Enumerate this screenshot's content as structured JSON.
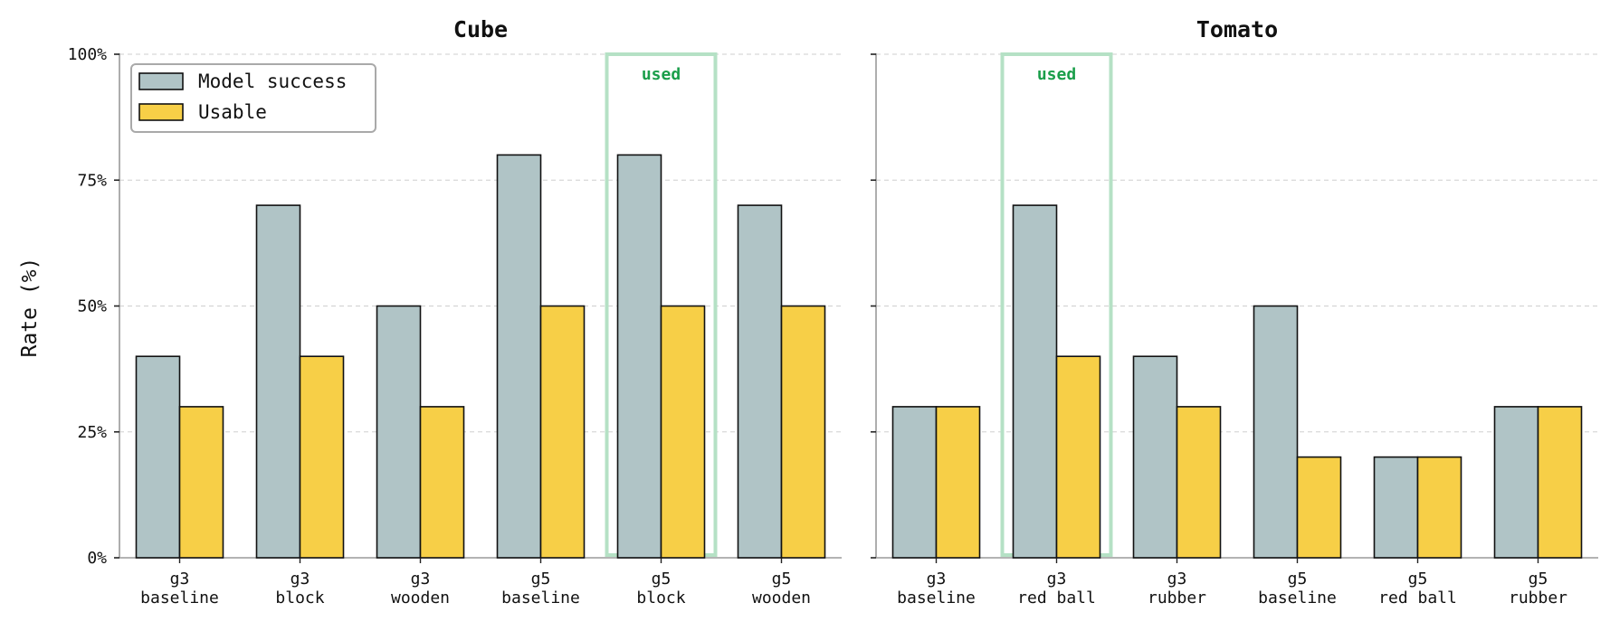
{
  "chart_data": [
    {
      "type": "bar",
      "title": "Cube",
      "ylabel": "Rate (%)",
      "ylim": [
        0,
        100
      ],
      "yticks": [
        "0%",
        "25%",
        "50%",
        "75%",
        "100%"
      ],
      "categories": [
        [
          "g3",
          "baseline"
        ],
        [
          "g3",
          "block"
        ],
        [
          "g3",
          "wooden"
        ],
        [
          "g5",
          "baseline"
        ],
        [
          "g5",
          "block"
        ],
        [
          "g5",
          "wooden"
        ]
      ],
      "series": [
        {
          "name": "Model success",
          "color": "#b0c4c6",
          "values": [
            40,
            70,
            50,
            80,
            80,
            70
          ]
        },
        {
          "name": "Usable",
          "color": "#f7cf47",
          "values": [
            30,
            40,
            30,
            50,
            50,
            50
          ]
        }
      ],
      "highlight": {
        "index": 4,
        "label": "used",
        "color": "#b5e1c5",
        "text_color": "#1a9e4a"
      },
      "legend": "top-left",
      "grid": "y dashed"
    },
    {
      "type": "bar",
      "title": "Tomato",
      "ylim": [
        0,
        100
      ],
      "categories": [
        [
          "g3",
          "baseline"
        ],
        [
          "g3",
          "red ball"
        ],
        [
          "g3",
          "rubber"
        ],
        [
          "g5",
          "baseline"
        ],
        [
          "g5",
          "red ball"
        ],
        [
          "g5",
          "rubber"
        ]
      ],
      "series": [
        {
          "name": "Model success",
          "color": "#b0c4c6",
          "values": [
            30,
            70,
            40,
            50,
            20,
            30
          ]
        },
        {
          "name": "Usable",
          "color": "#f7cf47",
          "values": [
            30,
            40,
            30,
            20,
            20,
            30
          ]
        }
      ],
      "highlight": {
        "index": 1,
        "label": "used",
        "color": "#b5e1c5",
        "text_color": "#1a9e4a"
      },
      "grid": "y dashed"
    }
  ]
}
